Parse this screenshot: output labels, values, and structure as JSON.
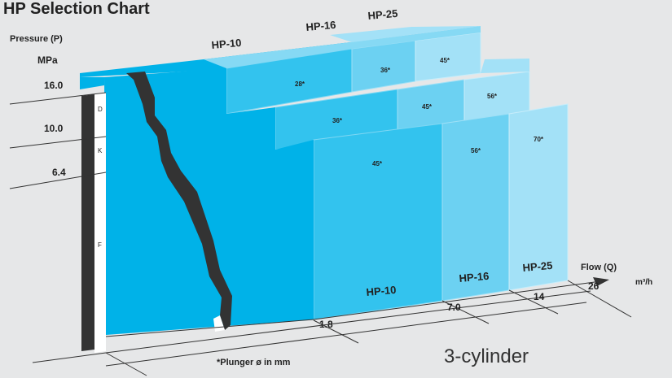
{
  "title": "HP Selection Chart",
  "y_axis": {
    "label": "Pressure (P)",
    "unit": "MPa",
    "ticks": [
      "16.0",
      "10.0",
      "6.4"
    ],
    "zones": [
      "D",
      "K",
      "F"
    ]
  },
  "x_axis": {
    "label": "Flow (Q)",
    "unit": "m³/h",
    "ticks": [
      "1.8",
      "7.0",
      "14",
      "26"
    ]
  },
  "models": {
    "front": [
      "HP-10",
      "HP-16",
      "HP-25"
    ],
    "top": [
      "HP-10",
      "HP-16",
      "HP-25"
    ]
  },
  "plungers": {
    "row_16": [
      "28*",
      "36*",
      "45*"
    ],
    "row_10": [
      "36*",
      "45*",
      "56*"
    ],
    "row_6": [
      "45*",
      "56*",
      "70*"
    ]
  },
  "note": "*Plunger ø in mm",
  "caption": "3-cylinder",
  "colors": {
    "background": "#e6e7e8",
    "hp10": "#00b2e8",
    "hp10_mid": "#33c3ee",
    "hp16": "#6cd1f2",
    "hp25": "#a3e1f7",
    "break_line": "#333333"
  }
}
